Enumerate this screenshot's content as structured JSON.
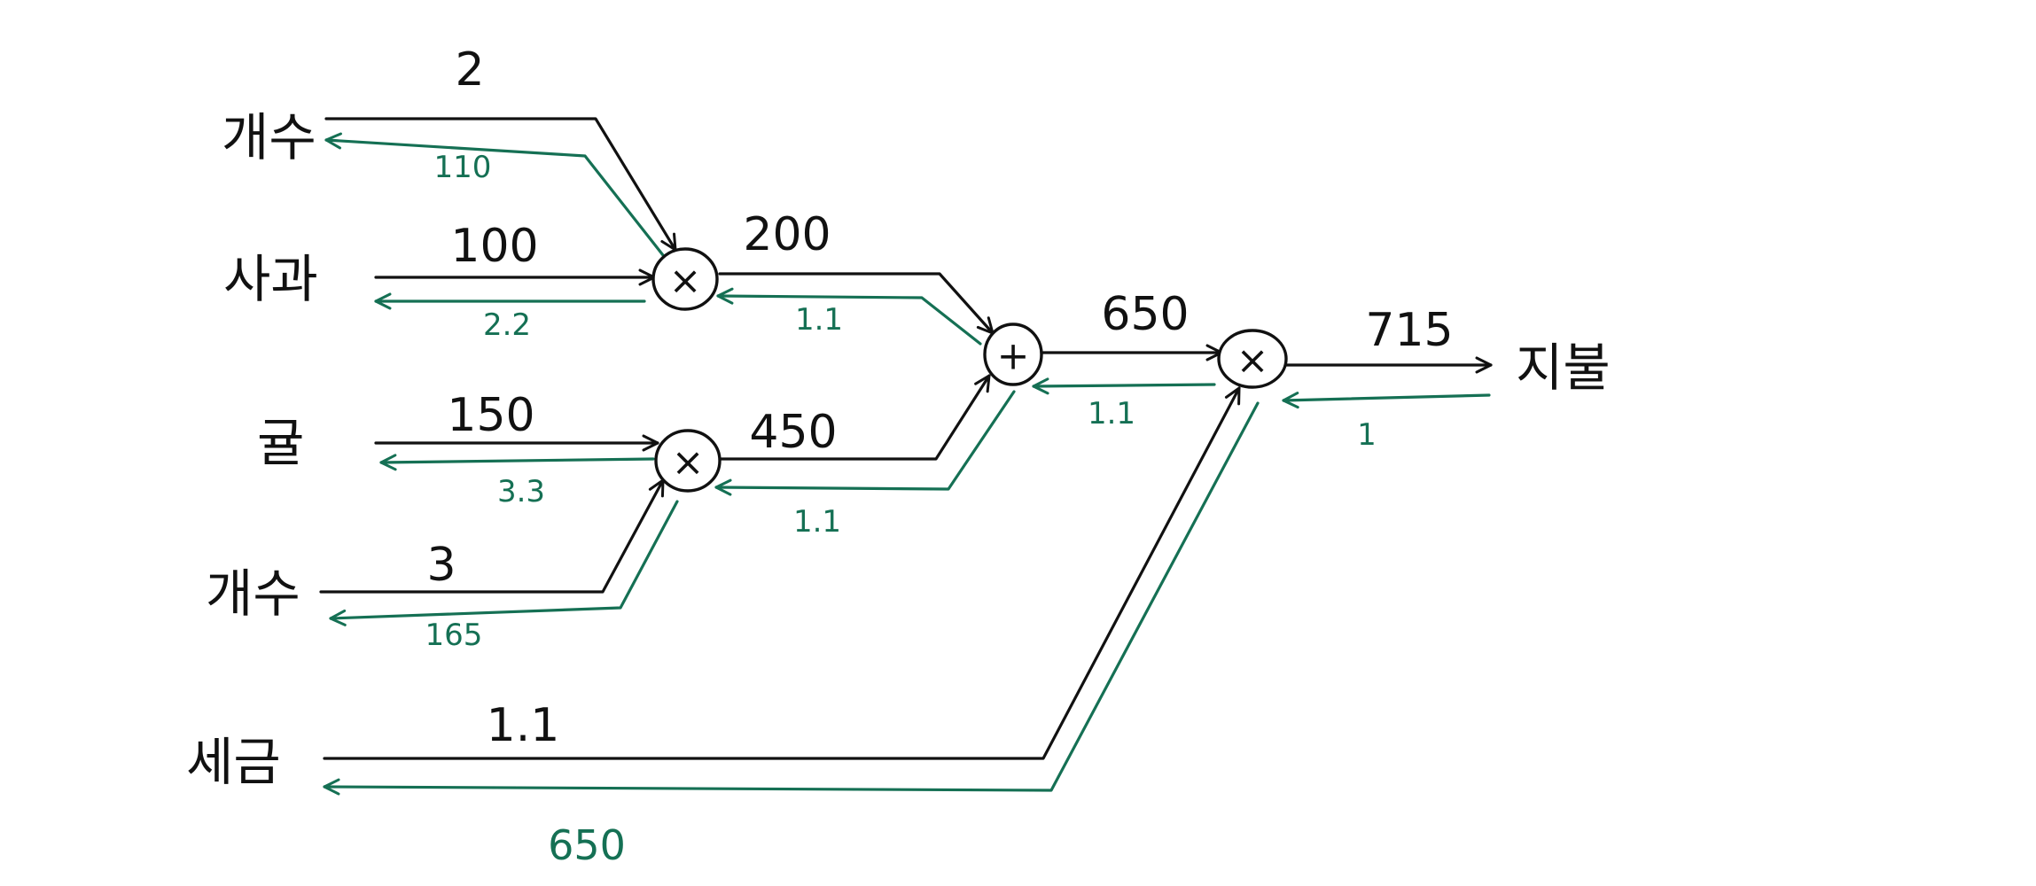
{
  "colors": {
    "forward": "#111111",
    "backward": "#157054",
    "background": "#ffffff"
  },
  "labels": {
    "apple_count": "개수",
    "apple": "사과",
    "orange": "귤",
    "orange_count": "개수",
    "tax": "세금",
    "pay": "지불"
  },
  "ops": {
    "mul1": "×",
    "mul2": "×",
    "add": "+",
    "mul3": "×"
  },
  "forward": {
    "apple_count": "2",
    "apple": "100",
    "orange": "150",
    "orange_count": "3",
    "tax": "1.1",
    "apple_total": "200",
    "orange_total": "450",
    "sum": "650",
    "pay": "715"
  },
  "backward": {
    "apple_count": "110",
    "apple": "2.2",
    "orange": "3.3",
    "orange_count": "165",
    "tax": "650",
    "apple_total": "1.1",
    "orange_total": "1.1",
    "sum": "1.1",
    "pay": "1"
  }
}
